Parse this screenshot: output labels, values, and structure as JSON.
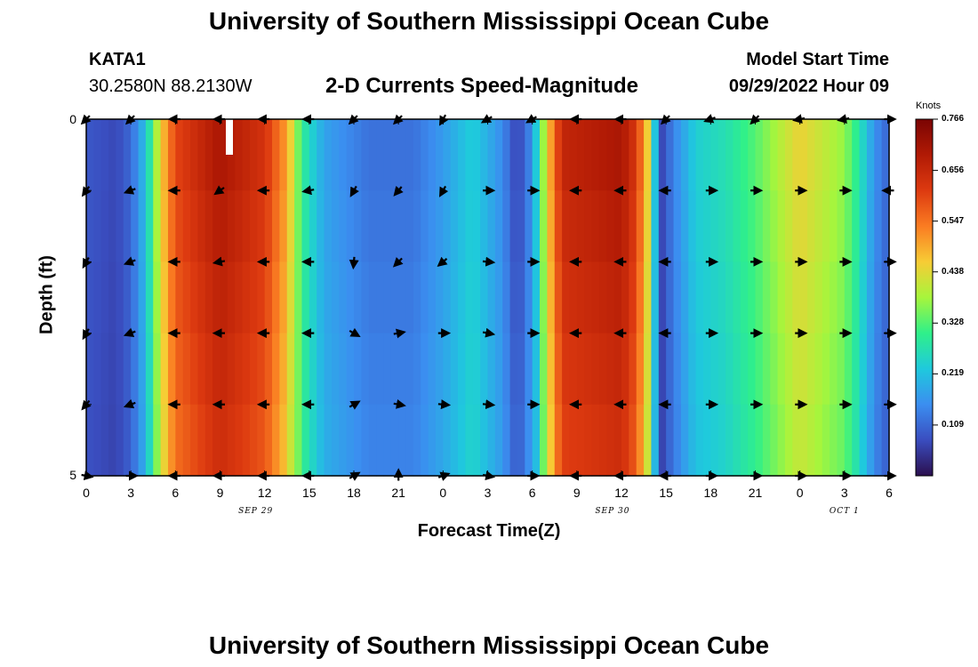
{
  "header": {
    "title": "University of Southern Mississippi Ocean Cube",
    "station": "KATA1",
    "coordinates": "30.2580N  88.2130W",
    "subtitle": "2-D Currents Speed-Magnitude",
    "model_start_label": "Model Start Time",
    "model_start_value": "09/29/2022 Hour 09"
  },
  "footer": {
    "title": "University of Southern Mississippi Ocean Cube"
  },
  "chart_data": {
    "type": "heatmap",
    "title": "2-D Currents Speed-Magnitude",
    "xlabel": "Forecast Time(Z)",
    "ylabel": "Depth (ft)",
    "x_ticks": [
      "0",
      "3",
      "6",
      "9",
      "12",
      "15",
      "18",
      "21",
      "0",
      "3",
      "6",
      "9",
      "12",
      "15",
      "18",
      "21",
      "0",
      "3",
      "6"
    ],
    "y_ticks": [
      "0",
      "5"
    ],
    "x_range": [
      0,
      54
    ],
    "y_range": [
      0,
      5
    ],
    "date_labels": [
      {
        "text": "SEP 29",
        "hour": 11.4
      },
      {
        "text": "SEP 30",
        "hour": 35.4
      },
      {
        "text": "OCT 1",
        "hour": 51.0
      }
    ],
    "colorbar": {
      "units": "Knots",
      "ticks": [
        "0.766",
        "0.656",
        "0.547",
        "0.438",
        "0.328",
        "0.219",
        "0.109"
      ],
      "range": [
        0,
        0.766
      ]
    },
    "speed_profile_knots": [
      {
        "hour": 0,
        "v": 0.09
      },
      {
        "hour": 2,
        "v": 0.07
      },
      {
        "hour": 3,
        "v": 0.11
      },
      {
        "hour": 4,
        "v": 0.22
      },
      {
        "hour": 5,
        "v": 0.45
      },
      {
        "hour": 6,
        "v": 0.6
      },
      {
        "hour": 9,
        "v": 0.7
      },
      {
        "hour": 12,
        "v": 0.63
      },
      {
        "hour": 13.5,
        "v": 0.5
      },
      {
        "hour": 14.5,
        "v": 0.3
      },
      {
        "hour": 16,
        "v": 0.18
      },
      {
        "hour": 19,
        "v": 0.12
      },
      {
        "hour": 22,
        "v": 0.12
      },
      {
        "hour": 24,
        "v": 0.17
      },
      {
        "hour": 26,
        "v": 0.24
      },
      {
        "hour": 28,
        "v": 0.15
      },
      {
        "hour": 29,
        "v": 0.06
      },
      {
        "hour": 30,
        "v": 0.16
      },
      {
        "hour": 31,
        "v": 0.45
      },
      {
        "hour": 32,
        "v": 0.66
      },
      {
        "hour": 36,
        "v": 0.7
      },
      {
        "hour": 37,
        "v": 0.62
      },
      {
        "hour": 38,
        "v": 0.4
      },
      {
        "hour": 38.5,
        "v": 0.05
      },
      {
        "hour": 39.5,
        "v": 0.14
      },
      {
        "hour": 41,
        "v": 0.24
      },
      {
        "hour": 43,
        "v": 0.27
      },
      {
        "hour": 45,
        "v": 0.33
      },
      {
        "hour": 48,
        "v": 0.45
      },
      {
        "hour": 51,
        "v": 0.37
      },
      {
        "hour": 52,
        "v": 0.28
      },
      {
        "hour": 53,
        "v": 0.16
      },
      {
        "hour": 54,
        "v": 0.1
      }
    ],
    "arrow_depths_ft": [
      0,
      1,
      2,
      3,
      4,
      5
    ],
    "arrow_hours": [
      0,
      3,
      6,
      9,
      12,
      15,
      18,
      21,
      24,
      27,
      30,
      33,
      36,
      39,
      42,
      45,
      48,
      51,
      54
    ],
    "arrow_directions_deg": [
      [
        225,
        225,
        180,
        180,
        180,
        180,
        225,
        225,
        240,
        210,
        210,
        180,
        180,
        225,
        200,
        225,
        190,
        190,
        0
      ],
      [
        235,
        200,
        180,
        215,
        180,
        190,
        240,
        230,
        240,
        0,
        0,
        180,
        180,
        180,
        0,
        0,
        0,
        0,
        180
      ],
      [
        240,
        200,
        180,
        190,
        180,
        180,
        265,
        225,
        220,
        355,
        0,
        180,
        180,
        180,
        0,
        0,
        0,
        0,
        0
      ],
      [
        240,
        200,
        180,
        180,
        180,
        180,
        330,
        10,
        0,
        350,
        0,
        180,
        180,
        180,
        0,
        0,
        0,
        0,
        0
      ],
      [
        230,
        200,
        180,
        180,
        180,
        180,
        30,
        350,
        355,
        355,
        0,
        180,
        180,
        180,
        0,
        0,
        0,
        0,
        0
      ],
      [
        350,
        0,
        180,
        180,
        180,
        180,
        30,
        90,
        20,
        350,
        0,
        180,
        180,
        180,
        0,
        0,
        0,
        0,
        0
      ]
    ]
  }
}
